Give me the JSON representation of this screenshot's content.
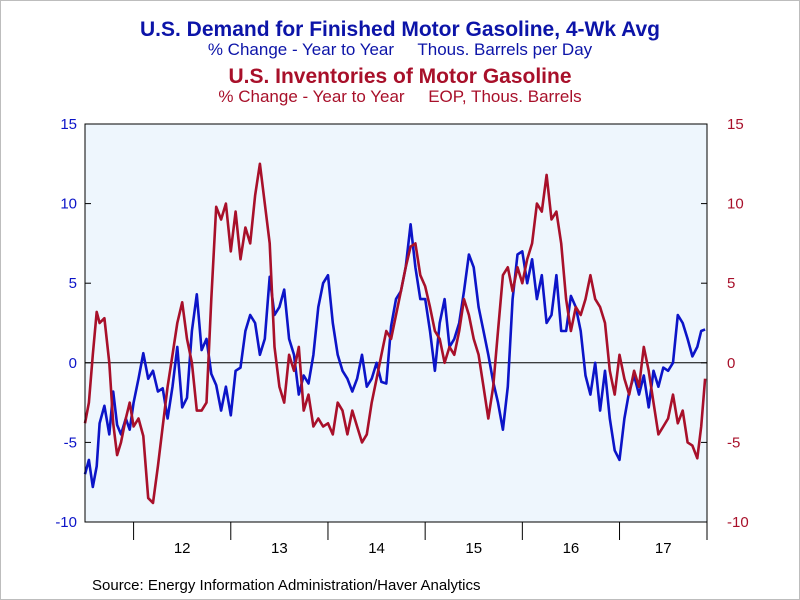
{
  "titles": {
    "demand_title": "U.S. Demand for Finished Motor Gasoline, 4-Wk Avg",
    "demand_subtitle": "% Change - Year to Year     Thous. Barrels per Day",
    "inventory_title": "U.S. Inventories of Motor Gasoline",
    "inventory_subtitle": "% Change - Year to Year     EOP, Thous. Barrels"
  },
  "source": "Source:  Energy Information Administration/Haver Analytics",
  "colors": {
    "demand": "#0c14c8",
    "inventory": "#a8102a",
    "plot_bg": "#eef6fd"
  },
  "chart_data": {
    "type": "line",
    "x_labels": [
      "12",
      "13",
      "14",
      "15",
      "16",
      "17"
    ],
    "xlim": [
      2011.5,
      2017.9
    ],
    "ylim": [
      -10,
      15
    ],
    "yticks": [
      -10,
      -5,
      0,
      5,
      10,
      15
    ],
    "left_ytick_labels": [
      "-10",
      "-5",
      "0",
      "5",
      "10",
      "15"
    ],
    "right_ytick_labels": [
      "-10",
      "-5",
      "0",
      "5",
      "10",
      "15"
    ],
    "grid": false,
    "zero_line": true,
    "series": [
      {
        "key": "demand",
        "x": [
          2011.5,
          2011.54,
          2011.58,
          2011.62,
          2011.65,
          2011.7,
          2011.75,
          2011.79,
          2011.83,
          2011.87,
          2011.92,
          2011.96,
          2012.0,
          2012.05,
          2012.1,
          2012.15,
          2012.2,
          2012.25,
          2012.3,
          2012.35,
          2012.4,
          2012.45,
          2012.5,
          2012.55,
          2012.6,
          2012.65,
          2012.7,
          2012.75,
          2012.8,
          2012.85,
          2012.9,
          2012.95,
          2013.0,
          2013.05,
          2013.1,
          2013.15,
          2013.2,
          2013.25,
          2013.3,
          2013.35,
          2013.4,
          2013.45,
          2013.5,
          2013.55,
          2013.6,
          2013.65,
          2013.7,
          2013.75,
          2013.8,
          2013.85,
          2013.9,
          2013.95,
          2014.0,
          2014.05,
          2014.1,
          2014.15,
          2014.2,
          2014.25,
          2014.3,
          2014.35,
          2014.4,
          2014.45,
          2014.5,
          2014.55,
          2014.6,
          2014.65,
          2014.7,
          2014.75,
          2014.8,
          2014.85,
          2014.9,
          2014.95,
          2015.0,
          2015.05,
          2015.1,
          2015.15,
          2015.2,
          2015.25,
          2015.3,
          2015.35,
          2015.4,
          2015.45,
          2015.5,
          2015.55,
          2015.6,
          2015.65,
          2015.7,
          2015.75,
          2015.8,
          2015.85,
          2015.9,
          2015.95,
          2016.0,
          2016.05,
          2016.1,
          2016.15,
          2016.2,
          2016.25,
          2016.3,
          2016.35,
          2016.4,
          2016.45,
          2016.5,
          2016.55,
          2016.6,
          2016.65,
          2016.7,
          2016.75,
          2016.8,
          2016.85,
          2016.9,
          2016.95,
          2017.0,
          2017.05,
          2017.1,
          2017.15,
          2017.2,
          2017.25,
          2017.3,
          2017.35,
          2017.4,
          2017.45,
          2017.5,
          2017.55,
          2017.6,
          2017.65,
          2017.7,
          2017.75,
          2017.8,
          2017.84,
          2017.88
        ],
        "values": [
          -7,
          -6.1,
          -7.8,
          -6.5,
          -3.8,
          -2.7,
          -4.5,
          -1.8,
          -3.9,
          -4.5,
          -3.5,
          -4.2,
          -2.5,
          -1.0,
          0.6,
          -1.0,
          -0.5,
          -1.8,
          -1.6,
          -3.5,
          -1.5,
          1.0,
          -2.8,
          -2.2,
          2.0,
          4.3,
          0.8,
          1.5,
          -0.7,
          -1.4,
          -3.0,
          -1.5,
          -3.3,
          -0.5,
          -0.3,
          2.0,
          3.0,
          2.5,
          0.5,
          1.5,
          5.4,
          3.0,
          3.5,
          4.6,
          1.5,
          0.5,
          -2.0,
          -0.8,
          -1.3,
          0.5,
          3.5,
          5.0,
          5.5,
          2.5,
          0.5,
          -0.5,
          -1.0,
          -1.8,
          -1.0,
          0.5,
          -1.5,
          -1.0,
          0.0,
          -1.2,
          -1.3,
          2.3,
          4.0,
          4.5,
          6.0,
          8.7,
          6.0,
          4.0,
          4.0,
          2.0,
          -0.5,
          2.5,
          4.0,
          1.0,
          1.5,
          2.5,
          4.5,
          6.8,
          6.0,
          3.5,
          2.0,
          0.5,
          -1.2,
          -2.5,
          -4.2,
          -1.5,
          4.0,
          6.8,
          7.0,
          5.0,
          6.5,
          4.0,
          5.5,
          2.5,
          3.0,
          5.5,
          2.0,
          2.0,
          4.2,
          3.5,
          2.0,
          -0.8,
          -2.0,
          0.0,
          -3.0,
          -0.5,
          -3.5,
          -5.5,
          -6.1,
          -3.5,
          -1.8,
          -0.8,
          -2.0,
          -0.8,
          -2.8,
          -0.5,
          -1.5,
          -0.3,
          -0.5,
          0.0,
          3.0,
          2.5,
          1.5,
          0.4,
          1.0,
          2.0,
          2.1
        ]
      },
      {
        "key": "inventory",
        "x": [
          2011.5,
          2011.54,
          2011.58,
          2011.62,
          2011.65,
          2011.7,
          2011.75,
          2011.79,
          2011.83,
          2011.87,
          2011.92,
          2011.96,
          2012.0,
          2012.05,
          2012.1,
          2012.15,
          2012.2,
          2012.25,
          2012.3,
          2012.35,
          2012.4,
          2012.45,
          2012.5,
          2012.55,
          2012.6,
          2012.65,
          2012.7,
          2012.75,
          2012.8,
          2012.85,
          2012.9,
          2012.95,
          2013.0,
          2013.05,
          2013.1,
          2013.15,
          2013.2,
          2013.25,
          2013.3,
          2013.35,
          2013.4,
          2013.45,
          2013.5,
          2013.55,
          2013.6,
          2013.65,
          2013.7,
          2013.75,
          2013.8,
          2013.85,
          2013.9,
          2013.95,
          2014.0,
          2014.05,
          2014.1,
          2014.15,
          2014.2,
          2014.25,
          2014.3,
          2014.35,
          2014.4,
          2014.45,
          2014.5,
          2014.55,
          2014.6,
          2014.65,
          2014.7,
          2014.75,
          2014.8,
          2014.85,
          2014.9,
          2014.95,
          2015.0,
          2015.05,
          2015.1,
          2015.15,
          2015.2,
          2015.25,
          2015.3,
          2015.35,
          2015.4,
          2015.45,
          2015.5,
          2015.55,
          2015.6,
          2015.65,
          2015.7,
          2015.75,
          2015.8,
          2015.85,
          2015.9,
          2015.95,
          2016.0,
          2016.05,
          2016.1,
          2016.15,
          2016.2,
          2016.25,
          2016.3,
          2016.35,
          2016.4,
          2016.45,
          2016.5,
          2016.55,
          2016.6,
          2016.65,
          2016.7,
          2016.75,
          2016.8,
          2016.85,
          2016.9,
          2016.95,
          2017.0,
          2017.05,
          2017.1,
          2017.15,
          2017.2,
          2017.25,
          2017.3,
          2017.35,
          2017.4,
          2017.45,
          2017.5,
          2017.55,
          2017.6,
          2017.65,
          2017.7,
          2017.75,
          2017.8,
          2017.84,
          2017.88
        ],
        "values": [
          -3.8,
          -2.5,
          0.5,
          3.2,
          2.5,
          2.8,
          0.0,
          -3.8,
          -5.8,
          -5.0,
          -3.5,
          -2.5,
          -4.0,
          -3.5,
          -4.6,
          -8.5,
          -8.8,
          -6.5,
          -4.0,
          -1.5,
          0.5,
          2.5,
          3.8,
          1.5,
          0.0,
          -3.0,
          -3.0,
          -2.5,
          4.0,
          9.8,
          9.0,
          10.0,
          7.0,
          9.5,
          6.5,
          8.5,
          7.5,
          10.5,
          12.5,
          10.0,
          7.5,
          1.0,
          -1.5,
          -2.5,
          0.5,
          -0.5,
          1.0,
          -3.0,
          -2.0,
          -4.0,
          -3.5,
          -4.0,
          -3.8,
          -4.5,
          -2.5,
          -3.0,
          -4.5,
          -3.0,
          -4.0,
          -5.0,
          -4.5,
          -2.5,
          -1.0,
          0.5,
          2.0,
          1.5,
          3.0,
          4.5,
          6.0,
          7.3,
          7.5,
          5.5,
          4.8,
          3.5,
          2.0,
          1.5,
          0.0,
          1.0,
          0.5,
          2.0,
          4.0,
          3.0,
          1.5,
          0.5,
          -1.5,
          -3.5,
          -1.5,
          2.0,
          5.5,
          6.0,
          4.5,
          6.0,
          5.0,
          6.5,
          7.5,
          10.0,
          9.5,
          11.8,
          9.0,
          9.5,
          7.5,
          4.0,
          2.0,
          3.5,
          3.0,
          4.0,
          5.5,
          4.0,
          3.5,
          2.5,
          -0.5,
          -2.0,
          0.5,
          -1.0,
          -2.0,
          -0.5,
          -1.5,
          1.0,
          -0.5,
          -2.5,
          -4.5,
          -4.0,
          -3.5,
          -2.0,
          -3.8,
          -3.0,
          -5.0,
          -5.2,
          -6.0,
          -4.0,
          -1.0
        ]
      }
    ]
  }
}
